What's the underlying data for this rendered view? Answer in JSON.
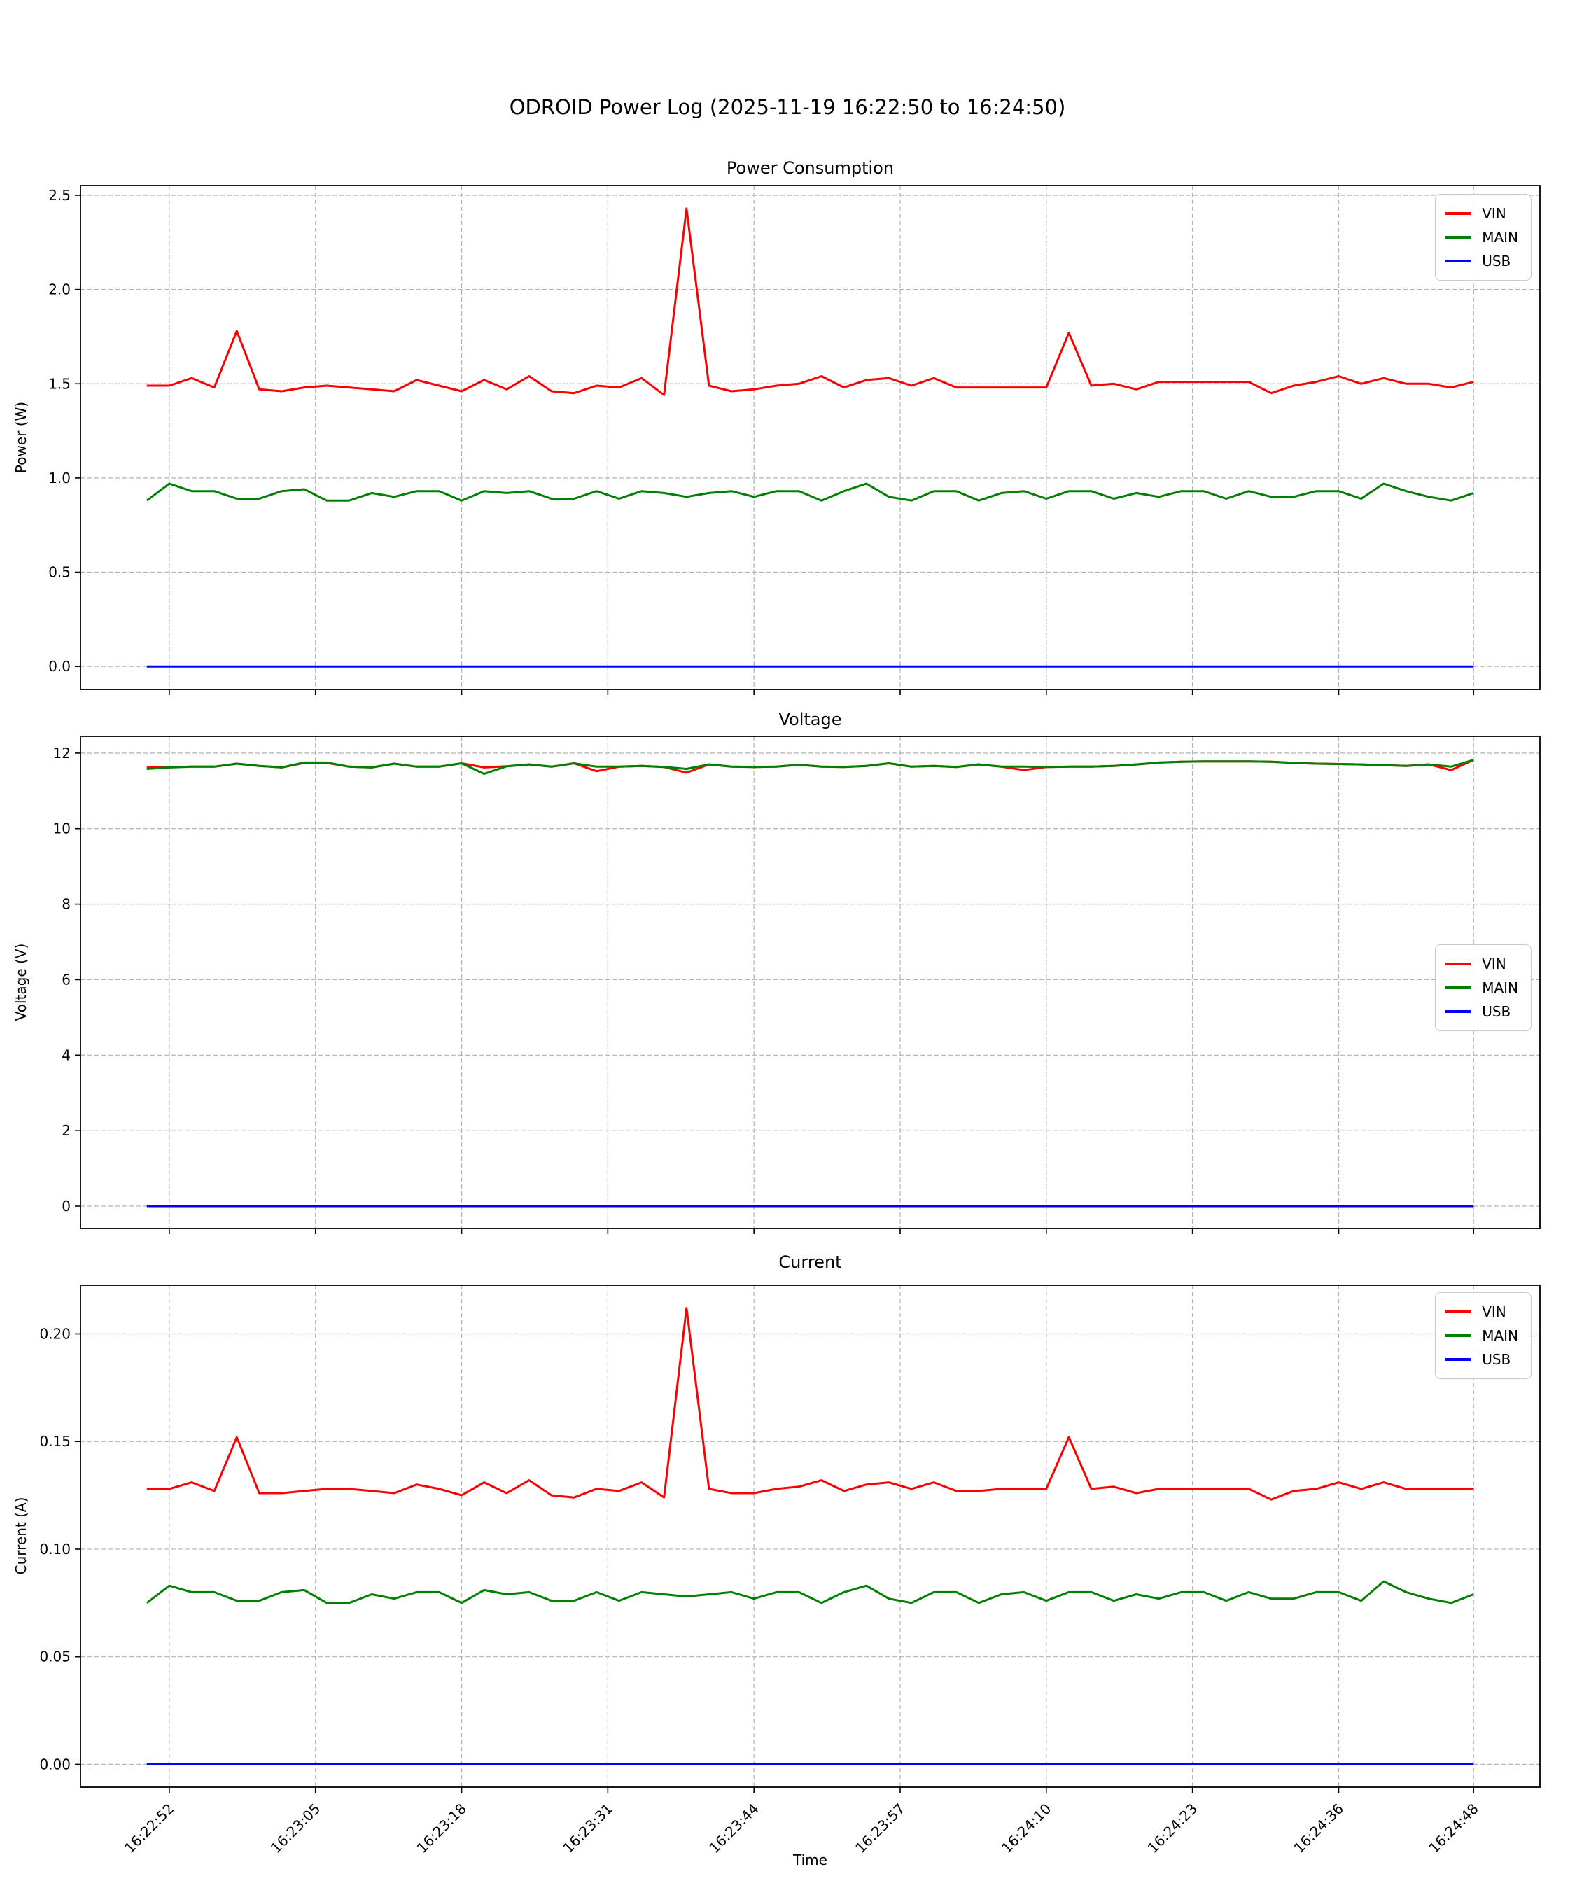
{
  "figure_title": "ODROID Power Log (2025-11-19 16:22:50 to 16:24:50)",
  "colors": {
    "vin": "#ff0000",
    "main": "#008000",
    "usb": "#0000ff",
    "grid": "#b3b3b3"
  },
  "chart_data": {
    "type": "line",
    "xlabel": "Time",
    "grid": true,
    "xlim": [
      -5.9,
      123.9
    ],
    "x_seconds": [
      0,
      2,
      4,
      6,
      8,
      10,
      12,
      14,
      16,
      18,
      20,
      22,
      24,
      26,
      28,
      30,
      32,
      34,
      36,
      38,
      40,
      42,
      44,
      46,
      48,
      50,
      52,
      54,
      56,
      58,
      60,
      62,
      64,
      66,
      68,
      70,
      72,
      74,
      76,
      78,
      80,
      82,
      84,
      86,
      88,
      90,
      92,
      94,
      96,
      98,
      100,
      102,
      104,
      106,
      108,
      110,
      112,
      114,
      116,
      118
    ],
    "x_ticks": [
      {
        "t": 2,
        "label": "16:22:52"
      },
      {
        "t": 15,
        "label": "16:23:05"
      },
      {
        "t": 28,
        "label": "16:23:18"
      },
      {
        "t": 41,
        "label": "16:23:31"
      },
      {
        "t": 54,
        "label": "16:23:44"
      },
      {
        "t": 67,
        "label": "16:23:57"
      },
      {
        "t": 80,
        "label": "16:24:10"
      },
      {
        "t": 93,
        "label": "16:24:23"
      },
      {
        "t": 106,
        "label": "16:24:36"
      },
      {
        "t": 118,
        "label": "16:24:48"
      }
    ],
    "subplots": [
      {
        "id": "power",
        "title": "Power Consumption",
        "ylabel": "Power (W)",
        "ylim": [
          -0.122,
          2.552
        ],
        "legend_loc": "upper right",
        "show_x_labels": false,
        "y_ticks": [
          {
            "v": 0.0,
            "label": "0.0"
          },
          {
            "v": 0.5,
            "label": "0.5"
          },
          {
            "v": 1.0,
            "label": "1.0"
          },
          {
            "v": 1.5,
            "label": "1.5"
          },
          {
            "v": 2.0,
            "label": "2.0"
          },
          {
            "v": 2.5,
            "label": "2.5"
          }
        ],
        "series": [
          {
            "name": "VIN",
            "color": "#ff0000",
            "values": [
              1.49,
              1.49,
              1.53,
              1.48,
              1.78,
              1.47,
              1.46,
              1.48,
              1.49,
              1.48,
              1.47,
              1.46,
              1.52,
              1.49,
              1.46,
              1.52,
              1.47,
              1.54,
              1.46,
              1.45,
              1.49,
              1.48,
              1.53,
              1.44,
              2.43,
              1.49,
              1.46,
              1.47,
              1.49,
              1.5,
              1.54,
              1.48,
              1.52,
              1.53,
              1.49,
              1.53,
              1.48,
              1.48,
              1.48,
              1.48,
              1.48,
              1.77,
              1.49,
              1.5,
              1.47,
              1.51,
              1.51,
              1.51,
              1.51,
              1.51,
              1.45,
              1.49,
              1.51,
              1.54,
              1.5,
              1.53,
              1.5,
              1.5,
              1.48,
              1.51
            ]
          },
          {
            "name": "MAIN",
            "color": "#008000",
            "values": [
              0.88,
              0.97,
              0.93,
              0.93,
              0.89,
              0.89,
              0.93,
              0.94,
              0.88,
              0.88,
              0.92,
              0.9,
              0.93,
              0.93,
              0.88,
              0.93,
              0.92,
              0.93,
              0.89,
              0.89,
              0.93,
              0.89,
              0.93,
              0.92,
              0.9,
              0.92,
              0.93,
              0.9,
              0.93,
              0.93,
              0.88,
              0.93,
              0.97,
              0.9,
              0.88,
              0.93,
              0.93,
              0.88,
              0.92,
              0.93,
              0.89,
              0.93,
              0.93,
              0.89,
              0.92,
              0.9,
              0.93,
              0.93,
              0.89,
              0.93,
              0.9,
              0.9,
              0.93,
              0.93,
              0.89,
              0.97,
              0.93,
              0.9,
              0.88,
              0.92
            ]
          },
          {
            "name": "USB",
            "color": "#0000ff",
            "values_const": 0.0
          }
        ]
      },
      {
        "id": "voltage",
        "title": "Voltage",
        "ylabel": "Voltage (V)",
        "ylim": [
          -0.593,
          12.443
        ],
        "legend_loc": "center right",
        "show_x_labels": false,
        "y_ticks": [
          {
            "v": 0,
            "label": "0"
          },
          {
            "v": 2,
            "label": "2"
          },
          {
            "v": 4,
            "label": "4"
          },
          {
            "v": 6,
            "label": "6"
          },
          {
            "v": 8,
            "label": "8"
          },
          {
            "v": 10,
            "label": "10"
          },
          {
            "v": 12,
            "label": "12"
          }
        ],
        "series": [
          {
            "name": "VIN",
            "color": "#ff0000",
            "values": [
              11.62,
              11.63,
              11.64,
              11.64,
              11.72,
              11.66,
              11.62,
              11.74,
              11.74,
              11.64,
              11.62,
              11.72,
              11.64,
              11.64,
              11.73,
              11.62,
              11.65,
              11.7,
              11.64,
              11.73,
              11.52,
              11.64,
              11.66,
              11.63,
              11.48,
              11.7,
              11.64,
              11.63,
              11.64,
              11.69,
              11.64,
              11.63,
              11.66,
              11.73,
              11.64,
              11.66,
              11.63,
              11.7,
              11.64,
              11.55,
              11.63,
              11.64,
              11.64,
              11.66,
              11.7,
              11.75,
              11.77,
              11.78,
              11.78,
              11.78,
              11.77,
              11.74,
              11.72,
              11.71,
              11.7,
              11.68,
              11.66,
              11.7,
              11.55,
              11.82
            ]
          },
          {
            "name": "MAIN",
            "color": "#008000",
            "values": [
              11.58,
              11.62,
              11.64,
              11.64,
              11.72,
              11.66,
              11.62,
              11.75,
              11.75,
              11.64,
              11.62,
              11.72,
              11.64,
              11.64,
              11.73,
              11.45,
              11.65,
              11.7,
              11.64,
              11.73,
              11.64,
              11.64,
              11.66,
              11.63,
              11.58,
              11.7,
              11.64,
              11.63,
              11.64,
              11.69,
              11.64,
              11.63,
              11.66,
              11.73,
              11.64,
              11.66,
              11.63,
              11.7,
              11.64,
              11.64,
              11.63,
              11.64,
              11.64,
              11.66,
              11.7,
              11.75,
              11.77,
              11.78,
              11.78,
              11.78,
              11.77,
              11.74,
              11.72,
              11.71,
              11.7,
              11.68,
              11.66,
              11.7,
              11.64,
              11.82
            ]
          },
          {
            "name": "USB",
            "color": "#0000ff",
            "values_const": 0.0
          }
        ]
      },
      {
        "id": "current",
        "title": "Current",
        "ylabel": "Current (A)",
        "ylim": [
          -0.0106,
          0.2226
        ],
        "legend_loc": "upper right",
        "show_x_labels": true,
        "y_ticks": [
          {
            "v": 0.0,
            "label": "0.00"
          },
          {
            "v": 0.05,
            "label": "0.05"
          },
          {
            "v": 0.1,
            "label": "0.10"
          },
          {
            "v": 0.15,
            "label": "0.15"
          },
          {
            "v": 0.2,
            "label": "0.20"
          }
        ],
        "series": [
          {
            "name": "VIN",
            "color": "#ff0000",
            "values": [
              0.128,
              0.128,
              0.131,
              0.127,
              0.152,
              0.126,
              0.126,
              0.127,
              0.128,
              0.128,
              0.127,
              0.126,
              0.13,
              0.128,
              0.125,
              0.131,
              0.126,
              0.132,
              0.125,
              0.124,
              0.128,
              0.127,
              0.131,
              0.124,
              0.212,
              0.128,
              0.126,
              0.126,
              0.128,
              0.129,
              0.132,
              0.127,
              0.13,
              0.131,
              0.128,
              0.131,
              0.127,
              0.127,
              0.128,
              0.128,
              0.128,
              0.152,
              0.128,
              0.129,
              0.126,
              0.128,
              0.128,
              0.128,
              0.128,
              0.128,
              0.123,
              0.127,
              0.128,
              0.131,
              0.128,
              0.131,
              0.128,
              0.128,
              0.128,
              0.128
            ]
          },
          {
            "name": "MAIN",
            "color": "#008000",
            "values": [
              0.075,
              0.083,
              0.08,
              0.08,
              0.076,
              0.076,
              0.08,
              0.081,
              0.075,
              0.075,
              0.079,
              0.077,
              0.08,
              0.08,
              0.075,
              0.081,
              0.079,
              0.08,
              0.076,
              0.076,
              0.08,
              0.076,
              0.08,
              0.079,
              0.078,
              0.079,
              0.08,
              0.077,
              0.08,
              0.08,
              0.075,
              0.08,
              0.083,
              0.077,
              0.075,
              0.08,
              0.08,
              0.075,
              0.079,
              0.08,
              0.076,
              0.08,
              0.08,
              0.076,
              0.079,
              0.077,
              0.08,
              0.08,
              0.076,
              0.08,
              0.077,
              0.077,
              0.08,
              0.08,
              0.076,
              0.085,
              0.08,
              0.077,
              0.075,
              0.079
            ]
          },
          {
            "name": "USB",
            "color": "#0000ff",
            "values_const": 0.0
          }
        ]
      }
    ]
  }
}
